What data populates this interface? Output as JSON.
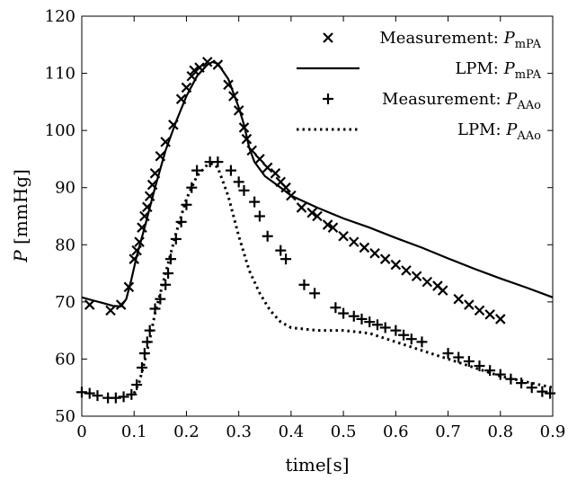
{
  "chart_data": {
    "type": "line",
    "title": "",
    "xlabel": "time[s]",
    "ylabel": "P [mmHg]",
    "xlim": [
      0,
      0.9
    ],
    "ylim": [
      50,
      120
    ],
    "x_ticks": [
      0,
      0.1,
      0.2,
      0.3,
      0.4,
      0.5,
      0.6,
      0.7,
      0.8,
      0.9
    ],
    "x_tick_labels": [
      "0",
      "0.1",
      "0.2",
      "0.3",
      "0.4",
      "0.5",
      "0.6",
      "0.7",
      "0.8",
      "0.9"
    ],
    "y_ticks": [
      50,
      60,
      70,
      80,
      90,
      100,
      110,
      120
    ],
    "y_tick_labels": [
      "50",
      "60",
      "70",
      "80",
      "90",
      "100",
      "110",
      "120"
    ],
    "grid": false,
    "legend_position": "top-right",
    "series": [
      {
        "name": "Measurement: P_mPA",
        "legend_main": "Measurement: ",
        "legend_var": "P",
        "legend_sub": "mPA",
        "style": "marker-x",
        "points": [
          [
            0.015,
            69.5
          ],
          [
            0.055,
            68.5
          ],
          [
            0.075,
            69.5
          ],
          [
            0.09,
            72.6
          ],
          [
            0.1,
            77.5
          ],
          [
            0.105,
            79
          ],
          [
            0.11,
            80.5
          ],
          [
            0.115,
            83
          ],
          [
            0.12,
            85
          ],
          [
            0.125,
            86.6
          ],
          [
            0.13,
            88.5
          ],
          [
            0.135,
            90.5
          ],
          [
            0.14,
            92.5
          ],
          [
            0.15,
            95.5
          ],
          [
            0.16,
            98
          ],
          [
            0.175,
            101
          ],
          [
            0.19,
            105.5
          ],
          [
            0.2,
            107.5
          ],
          [
            0.21,
            109.5
          ],
          [
            0.215,
            110.5
          ],
          [
            0.225,
            111
          ],
          [
            0.24,
            112
          ],
          [
            0.26,
            111.5
          ],
          [
            0.28,
            108
          ],
          [
            0.29,
            106
          ],
          [
            0.3,
            103.5
          ],
          [
            0.31,
            100.5
          ],
          [
            0.315,
            98.5
          ],
          [
            0.325,
            96.5
          ],
          [
            0.34,
            95
          ],
          [
            0.355,
            93.5
          ],
          [
            0.37,
            92.5
          ],
          [
            0.38,
            91
          ],
          [
            0.39,
            90
          ],
          [
            0.4,
            88.6
          ],
          [
            0.42,
            86.5
          ],
          [
            0.44,
            85.6
          ],
          [
            0.45,
            85
          ],
          [
            0.47,
            83.5
          ],
          [
            0.48,
            83
          ],
          [
            0.5,
            81.5
          ],
          [
            0.52,
            80.5
          ],
          [
            0.54,
            79.5
          ],
          [
            0.56,
            78.5
          ],
          [
            0.58,
            77.5
          ],
          [
            0.6,
            76.5
          ],
          [
            0.62,
            75.5
          ],
          [
            0.64,
            74.5
          ],
          [
            0.66,
            73.5
          ],
          [
            0.68,
            72.8
          ],
          [
            0.69,
            72
          ],
          [
            0.72,
            70.5
          ],
          [
            0.74,
            69.5
          ],
          [
            0.76,
            68.5
          ],
          [
            0.78,
            67.8
          ],
          [
            0.8,
            67
          ]
        ]
      },
      {
        "name": "LPM: P_mPA",
        "legend_main": "LPM: ",
        "legend_var": "P",
        "legend_sub": "mPA",
        "style": "solid",
        "points": [
          [
            0,
            70.8
          ],
          [
            0.02,
            70.3
          ],
          [
            0.04,
            69.8
          ],
          [
            0.06,
            69.3
          ],
          [
            0.075,
            69.2
          ],
          [
            0.085,
            70.5
          ],
          [
            0.095,
            74
          ],
          [
            0.105,
            78
          ],
          [
            0.12,
            83
          ],
          [
            0.14,
            90
          ],
          [
            0.16,
            96.5
          ],
          [
            0.18,
            101.5
          ],
          [
            0.2,
            106
          ],
          [
            0.22,
            109.5
          ],
          [
            0.24,
            111.5
          ],
          [
            0.25,
            112
          ],
          [
            0.26,
            111.7
          ],
          [
            0.28,
            109
          ],
          [
            0.3,
            104
          ],
          [
            0.31,
            101
          ],
          [
            0.32,
            97
          ],
          [
            0.33,
            94.5
          ],
          [
            0.35,
            92
          ],
          [
            0.38,
            90
          ],
          [
            0.4,
            88.6
          ],
          [
            0.45,
            86.5
          ],
          [
            0.5,
            84.6
          ],
          [
            0.55,
            83
          ],
          [
            0.6,
            81.2
          ],
          [
            0.65,
            79.5
          ],
          [
            0.7,
            77.6
          ],
          [
            0.75,
            75.8
          ],
          [
            0.8,
            74.1
          ],
          [
            0.85,
            72.5
          ],
          [
            0.9,
            70.8
          ]
        ]
      },
      {
        "name": "Measurement: P_AAo",
        "legend_main": "Measurement: ",
        "legend_var": "P",
        "legend_sub": "AAo",
        "style": "marker-plus",
        "points": [
          [
            0,
            54.2
          ],
          [
            0.015,
            54
          ],
          [
            0.03,
            53.6
          ],
          [
            0.05,
            53.2
          ],
          [
            0.065,
            53.2
          ],
          [
            0.08,
            53.4
          ],
          [
            0.095,
            53.8
          ],
          [
            0.105,
            55.5
          ],
          [
            0.115,
            58.5
          ],
          [
            0.12,
            61
          ],
          [
            0.125,
            63
          ],
          [
            0.13,
            65
          ],
          [
            0.14,
            68.8
          ],
          [
            0.15,
            70.5
          ],
          [
            0.16,
            73
          ],
          [
            0.165,
            75
          ],
          [
            0.17,
            77.5
          ],
          [
            0.18,
            81
          ],
          [
            0.19,
            84
          ],
          [
            0.2,
            87
          ],
          [
            0.21,
            90
          ],
          [
            0.22,
            93
          ],
          [
            0.245,
            94.5
          ],
          [
            0.26,
            94.5
          ],
          [
            0.285,
            93
          ],
          [
            0.3,
            91
          ],
          [
            0.31,
            89.5
          ],
          [
            0.33,
            87.5
          ],
          [
            0.34,
            85
          ],
          [
            0.355,
            81.5
          ],
          [
            0.38,
            79
          ],
          [
            0.39,
            77.5
          ],
          [
            0.425,
            73
          ],
          [
            0.445,
            71.5
          ],
          [
            0.485,
            69
          ],
          [
            0.5,
            68
          ],
          [
            0.52,
            67.5
          ],
          [
            0.535,
            67
          ],
          [
            0.55,
            66.5
          ],
          [
            0.565,
            66
          ],
          [
            0.58,
            65.5
          ],
          [
            0.6,
            65
          ],
          [
            0.615,
            64.2
          ],
          [
            0.63,
            63.5
          ],
          [
            0.65,
            63
          ],
          [
            0.7,
            61
          ],
          [
            0.72,
            60.3
          ],
          [
            0.74,
            59.6
          ],
          [
            0.76,
            58.8
          ],
          [
            0.78,
            58
          ],
          [
            0.8,
            57.3
          ],
          [
            0.82,
            56.5
          ],
          [
            0.84,
            55.8
          ],
          [
            0.86,
            55
          ],
          [
            0.88,
            54.3
          ],
          [
            0.895,
            54
          ]
        ]
      },
      {
        "name": "LPM: P_AAo",
        "legend_main": "LPM: ",
        "legend_var": "P",
        "legend_sub": "AAo",
        "style": "dotted",
        "points": [
          [
            0.1,
            54
          ],
          [
            0.11,
            56
          ],
          [
            0.12,
            59.5
          ],
          [
            0.13,
            63.5
          ],
          [
            0.14,
            68
          ],
          [
            0.16,
            75
          ],
          [
            0.18,
            82
          ],
          [
            0.2,
            88
          ],
          [
            0.22,
            92
          ],
          [
            0.24,
            94
          ],
          [
            0.25,
            94.2
          ],
          [
            0.26,
            93.5
          ],
          [
            0.28,
            88.5
          ],
          [
            0.3,
            81.5
          ],
          [
            0.32,
            75.5
          ],
          [
            0.34,
            71.5
          ],
          [
            0.36,
            68.5
          ],
          [
            0.38,
            66.5
          ],
          [
            0.4,
            65.5
          ],
          [
            0.45,
            65
          ],
          [
            0.5,
            65
          ],
          [
            0.55,
            64.5
          ],
          [
            0.6,
            63
          ],
          [
            0.65,
            61.5
          ],
          [
            0.7,
            60
          ],
          [
            0.75,
            58.5
          ],
          [
            0.8,
            57
          ],
          [
            0.85,
            56
          ],
          [
            0.9,
            55
          ]
        ]
      }
    ]
  }
}
